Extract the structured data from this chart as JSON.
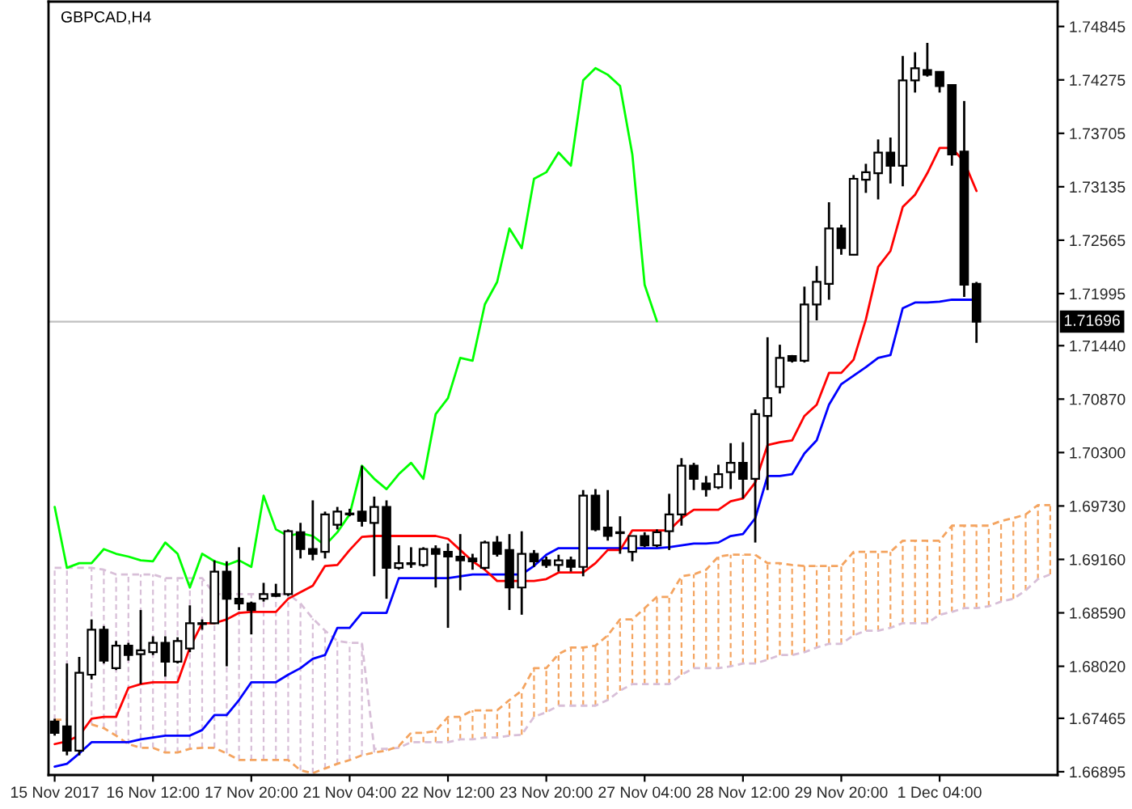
{
  "chart_data": {
    "type": "candlestick",
    "title": "GBPCAD,H4",
    "categories": [
      "15 Nov 2017",
      null,
      null,
      null,
      null,
      null,
      null,
      null,
      "16 Nov 12:00",
      null,
      null,
      null,
      null,
      null,
      null,
      null,
      "17 Nov 20:00",
      null,
      null,
      null,
      null,
      null,
      null,
      null,
      "21 Nov 04:00",
      null,
      null,
      null,
      null,
      null,
      null,
      null,
      "22 Nov 12:00",
      null,
      null,
      null,
      null,
      null,
      null,
      null,
      "23 Nov 20:00",
      null,
      null,
      null,
      null,
      null,
      null,
      null,
      "27 Nov 04:00",
      null,
      null,
      null,
      null,
      null,
      null,
      null,
      "28 Nov 12:00",
      null,
      null,
      null,
      null,
      null,
      null,
      null,
      "29 Nov 20:00",
      null,
      null,
      null,
      null,
      null,
      null,
      null,
      "1 Dec 04:00",
      null,
      null,
      null,
      null,
      null,
      null,
      null,
      null,
      null
    ],
    "ohlc": [
      [
        1.6743,
        1.6746,
        1.6728,
        1.6731
      ],
      [
        1.6738,
        1.6805,
        1.6707,
        1.6712
      ],
      [
        1.6712,
        1.6812,
        1.6707,
        1.6795
      ],
      [
        1.6793,
        1.6852,
        1.6788,
        1.6841
      ],
      [
        1.6841,
        1.6845,
        1.6805,
        1.6808
      ],
      [
        1.68,
        1.6829,
        1.6798,
        1.6824
      ],
      [
        1.6824,
        1.6827,
        1.6808,
        1.6814
      ],
      [
        1.6815,
        1.6862,
        1.6783,
        1.6819
      ],
      [
        1.6817,
        1.6834,
        1.6814,
        1.6827
      ],
      [
        1.6827,
        1.6834,
        1.6791,
        1.6807
      ],
      [
        1.6807,
        1.6833,
        1.6805,
        1.6829
      ],
      [
        1.6821,
        1.6867,
        1.6817,
        1.6848
      ],
      [
        1.6847,
        1.6852,
        1.6841,
        1.6848
      ],
      [
        1.6848,
        1.6915,
        1.6847,
        1.6903
      ],
      [
        1.6903,
        1.6914,
        1.6802,
        1.6874
      ],
      [
        1.6874,
        1.6929,
        1.6862,
        1.6869
      ],
      [
        1.6869,
        1.6871,
        1.6836,
        1.6862
      ],
      [
        1.6874,
        1.6891,
        1.6871,
        1.6879
      ],
      [
        1.6879,
        1.689,
        1.6876,
        1.6877
      ],
      [
        1.6879,
        1.6948,
        1.6877,
        1.6946
      ],
      [
        1.6945,
        1.6955,
        1.6917,
        1.6927
      ],
      [
        1.6927,
        1.6979,
        1.6915,
        1.6922
      ],
      [
        1.6924,
        1.6967,
        1.6917,
        1.6964
      ],
      [
        1.6953,
        1.6972,
        1.6948,
        1.6967
      ],
      [
        1.6965,
        1.697,
        1.6962,
        1.6964
      ],
      [
        1.6967,
        1.7016,
        1.6951,
        1.6957
      ],
      [
        1.6955,
        1.6983,
        1.6898,
        1.6972
      ],
      [
        1.6972,
        1.6979,
        1.6874,
        1.6907
      ],
      [
        1.6907,
        1.6931,
        1.6905,
        1.6912
      ],
      [
        1.6911,
        1.6929,
        1.6907,
        1.6912
      ],
      [
        1.691,
        1.6929,
        1.6908,
        1.6927
      ],
      [
        1.6927,
        1.6931,
        1.6886,
        1.6922
      ],
      [
        1.6924,
        1.6933,
        1.6843,
        1.6919
      ],
      [
        1.6919,
        1.6943,
        1.6883,
        1.6915
      ],
      [
        1.6917,
        1.6922,
        1.6905,
        1.6914
      ],
      [
        1.6907,
        1.6936,
        1.6905,
        1.6934
      ],
      [
        1.6934,
        1.6941,
        1.6919,
        1.6922
      ],
      [
        1.6926,
        1.6943,
        1.6862,
        1.6886
      ],
      [
        1.6886,
        1.6946,
        1.6857,
        1.6922
      ],
      [
        1.6922,
        1.6926,
        1.6908,
        1.6914
      ],
      [
        1.6915,
        1.6919,
        1.6907,
        1.691
      ],
      [
        1.691,
        1.6921,
        1.6903,
        1.6915
      ],
      [
        1.6915,
        1.6919,
        1.6903,
        1.6908
      ],
      [
        1.6908,
        1.699,
        1.6898,
        1.6984
      ],
      [
        1.6984,
        1.6991,
        1.6946,
        1.6948
      ],
      [
        1.695,
        1.699,
        1.6936,
        1.6941
      ],
      [
        1.6945,
        1.6962,
        1.6922,
        1.6944
      ],
      [
        1.6924,
        1.6941,
        1.6914,
        1.6941
      ],
      [
        1.6941,
        1.6945,
        1.6929,
        1.6931
      ],
      [
        1.6931,
        1.6948,
        1.6929,
        1.6945
      ],
      [
        1.6946,
        1.6986,
        1.6926,
        1.6964
      ],
      [
        1.6964,
        1.7024,
        1.6952,
        1.7016
      ],
      [
        1.7016,
        1.7019,
        1.699,
        1.7002
      ],
      [
        1.6997,
        1.7005,
        1.6983,
        1.6991
      ],
      [
        1.6993,
        1.7017,
        1.6991,
        1.7007
      ],
      [
        1.7009,
        1.704,
        1.6991,
        1.7019
      ],
      [
        1.7019,
        1.7041,
        1.6981,
        1.7002
      ],
      [
        1.7002,
        1.7076,
        1.6934,
        1.7071
      ],
      [
        1.7069,
        1.7153,
        1.699,
        1.7088
      ],
      [
        1.71,
        1.7145,
        1.7093,
        1.7131
      ],
      [
        1.7133,
        1.7134,
        1.7126,
        1.7128
      ],
      [
        1.7128,
        1.7207,
        1.7126,
        1.7188
      ],
      [
        1.7188,
        1.7229,
        1.7171,
        1.7212
      ],
      [
        1.721,
        1.7297,
        1.7193,
        1.7269
      ],
      [
        1.7269,
        1.7273,
        1.7241,
        1.7248
      ],
      [
        1.7241,
        1.7326,
        1.724,
        1.7322
      ],
      [
        1.7321,
        1.7338,
        1.7307,
        1.7329
      ],
      [
        1.7328,
        1.7364,
        1.73,
        1.735
      ],
      [
        1.735,
        1.7366,
        1.7317,
        1.7336
      ],
      [
        1.7336,
        1.7453,
        1.7314,
        1.7427
      ],
      [
        1.7427,
        1.7457,
        1.7414,
        1.744
      ],
      [
        1.7438,
        1.7467,
        1.7431,
        1.7433
      ],
      [
        1.7436,
        1.7436,
        1.7414,
        1.7421
      ],
      [
        1.7422,
        1.7422,
        1.7336,
        1.7348
      ],
      [
        1.7351,
        1.7405,
        1.7196,
        1.7209
      ],
      [
        1.721,
        1.7212,
        1.7147,
        1.71696
      ],
      null,
      null,
      null,
      null,
      null,
      null
    ],
    "series": [
      {
        "type": "line",
        "color": "#d8bfd8",
        "line_style": "dashed",
        "values": [
          1.6907,
          1.6907,
          1.6907,
          1.6907,
          1.6905,
          1.69,
          1.69,
          1.69,
          1.69,
          1.6896,
          1.6896,
          1.6896,
          1.6896,
          1.6879,
          1.6879,
          1.6879,
          1.6879,
          1.6879,
          1.6879,
          1.6879,
          1.6869,
          1.6853,
          1.684,
          1.6829,
          1.6827,
          1.6827,
          1.6714,
          1.6714,
          1.6715,
          1.6721,
          1.6721,
          1.6721,
          1.6721,
          1.6724,
          1.6724,
          1.6726,
          1.6726,
          1.6728,
          1.6729,
          1.6748,
          1.6753,
          1.676,
          1.676,
          1.676,
          1.676,
          1.6766,
          1.6776,
          1.6783,
          1.6783,
          1.6783,
          1.6783,
          1.6793,
          1.68,
          1.68,
          1.68,
          1.6802,
          1.6805,
          1.6805,
          1.6809,
          1.6814,
          1.6814,
          1.6817,
          1.6822,
          1.6826,
          1.6826,
          1.6835,
          1.684,
          1.684,
          1.6843,
          1.6848,
          1.6848,
          1.6848,
          1.6857,
          1.686,
          1.6864,
          1.6864,
          1.6866,
          1.6871,
          1.6874,
          1.6883,
          1.6895,
          1.69
        ]
      },
      {
        "type": "line",
        "color": "#f4a460",
        "line_style": "dashed",
        "values": [
          1.6745,
          1.6745,
          null,
          1.674,
          1.6736,
          1.6728,
          1.6719,
          1.6715,
          1.6715,
          1.671,
          1.671,
          1.6714,
          1.6715,
          1.6715,
          1.6709,
          1.6702,
          1.6702,
          1.6702,
          1.6702,
          1.6702,
          1.6691,
          1.6688,
          1.6693,
          1.6698,
          1.6702,
          1.6707,
          1.671,
          1.6712,
          1.6717,
          1.6731,
          1.6731,
          1.6733,
          1.6748,
          1.6748,
          1.6755,
          1.6755,
          1.6755,
          1.6766,
          1.6776,
          1.68,
          1.68,
          1.6815,
          1.6822,
          1.6822,
          1.6824,
          1.6835,
          1.6852,
          1.6852,
          1.6864,
          1.6876,
          1.6876,
          1.6898,
          1.69,
          1.6905,
          1.6919,
          1.6921,
          1.6921,
          1.6921,
          1.6912,
          1.6912,
          1.691,
          1.6909,
          1.6909,
          1.6909,
          1.6909,
          1.6924,
          1.6924,
          1.6924,
          1.6924,
          1.6936,
          1.6936,
          1.6936,
          1.6936,
          1.6952,
          1.6952,
          1.6952,
          1.6952,
          1.6957,
          1.696,
          1.6964,
          1.6974,
          1.6974
        ]
      },
      {
        "type": "line",
        "color": "#00ff00",
        "line_style": "solid",
        "values": [
          1.6972,
          1.6907,
          1.6912,
          1.6912,
          1.6927,
          1.6922,
          1.6919,
          1.6915,
          1.6914,
          1.6934,
          1.6922,
          1.6886,
          1.6922,
          1.6914,
          1.691,
          1.6915,
          1.6908,
          1.6984,
          1.6948,
          1.6941,
          1.6944,
          1.6941,
          1.6931,
          1.6945,
          1.6964,
          1.7016,
          1.7002,
          1.6991,
          1.7007,
          1.7019,
          1.7002,
          1.7071,
          1.7088,
          1.7131,
          1.7128,
          1.7188,
          1.7212,
          1.7269,
          1.7248,
          1.7322,
          1.7329,
          1.735,
          1.7336,
          1.7427,
          1.744,
          1.7433,
          1.7421,
          1.7348,
          1.7209,
          1.717,
          null,
          null,
          null,
          null,
          null,
          null,
          null,
          null,
          null,
          null,
          null,
          null,
          null,
          null,
          null,
          null,
          null,
          null,
          null,
          null,
          null,
          null,
          null,
          null,
          null,
          null,
          null,
          null,
          null,
          null,
          null,
          null
        ]
      },
      {
        "type": "line",
        "color": "#0000ff",
        "line_style": "solid",
        "values": [
          1.6695,
          1.6698,
          1.6709,
          1.6721,
          1.6721,
          1.6721,
          1.6721,
          1.6724,
          1.6726,
          1.6728,
          1.6728,
          1.6728,
          1.6734,
          1.675,
          1.675,
          1.6766,
          1.6785,
          1.6785,
          1.6785,
          1.6793,
          1.68,
          1.681,
          1.6814,
          1.6843,
          1.6843,
          1.6859,
          1.6859,
          1.6859,
          1.6896,
          1.6896,
          1.6896,
          1.6896,
          1.6896,
          1.6898,
          1.69,
          1.69,
          1.69,
          1.69,
          1.69,
          1.6909,
          1.6921,
          1.6928,
          1.6928,
          1.6928,
          1.6928,
          1.6928,
          1.6928,
          1.6928,
          1.6928,
          1.6928,
          1.6929,
          1.6931,
          1.6933,
          1.6933,
          1.6934,
          1.6941,
          1.6943,
          1.696,
          1.7005,
          1.7005,
          1.7007,
          1.7029,
          1.7043,
          1.7081,
          1.7103,
          1.7112,
          1.7121,
          1.7131,
          1.7134,
          1.7184,
          1.719,
          1.719,
          1.7191,
          1.7193,
          1.7193,
          1.7193,
          null,
          null,
          null,
          null,
          null,
          null
        ]
      },
      {
        "type": "line",
        "color": "#ff0000",
        "line_style": "solid",
        "values": [
          1.6719,
          1.6722,
          1.6728,
          1.6746,
          1.6748,
          1.6748,
          1.6779,
          1.6783,
          1.6785,
          1.6785,
          1.6785,
          1.6822,
          1.6848,
          1.6848,
          1.6852,
          1.6859,
          1.686,
          1.686,
          1.686,
          1.6874,
          1.6881,
          1.6888,
          1.6909,
          1.691,
          1.6926,
          1.694,
          1.6941,
          1.6941,
          1.6941,
          1.6941,
          1.6941,
          1.6941,
          1.6938,
          1.6926,
          1.6914,
          1.6905,
          1.6893,
          1.6893,
          1.6893,
          1.6893,
          1.6895,
          1.6902,
          1.6902,
          1.6902,
          1.6912,
          1.6926,
          1.6926,
          1.6947,
          1.6947,
          1.6947,
          1.6947,
          1.696,
          1.6969,
          1.6969,
          1.6969,
          1.6978,
          1.6981,
          1.6998,
          1.7038,
          1.7041,
          1.7043,
          1.7069,
          1.7081,
          1.7115,
          1.7115,
          1.7129,
          1.7172,
          1.7228,
          1.7245,
          1.7292,
          1.7305,
          1.7328,
          1.7355,
          1.7355,
          1.734,
          1.7309,
          null,
          null,
          null,
          null,
          null,
          null
        ]
      }
    ],
    "ylim": [
      1.6686,
      1.7511
    ],
    "yticks": [
      1.74845,
      1.74275,
      1.73705,
      1.73135,
      1.72565,
      1.71995,
      {
        "value": 1.7144,
        "label": "1.71440"
      },
      {
        "value": 1.7087,
        "label": "1.70870"
      },
      {
        "value": 1.703,
        "label": "1.70300"
      },
      {
        "value": 1.6973,
        "label": "1.69730"
      },
      {
        "value": 1.6916,
        "label": "1.69160"
      },
      {
        "value": 1.6859,
        "label": "1.68590"
      },
      {
        "value": 1.6802,
        "label": "1.68020"
      },
      1.67465,
      1.66895
    ],
    "ref_lines": [
      {
        "axis": "y",
        "value": 1.71696,
        "label": "1.71696",
        "color": "#c0c0c0"
      }
    ]
  }
}
